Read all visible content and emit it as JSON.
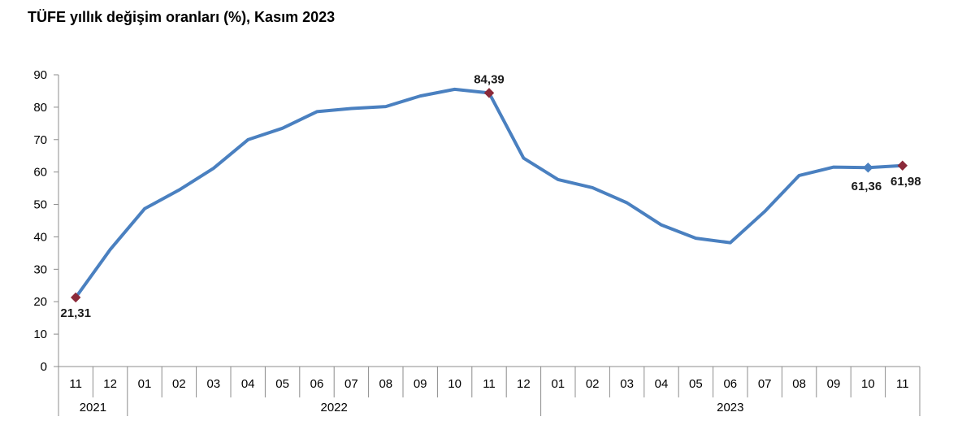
{
  "chart_data": {
    "type": "line",
    "title": "TÜFE yıllık değişim oranları (%), Kasım 2023",
    "xlabel": "",
    "ylabel": "",
    "ylim": [
      0,
      90
    ],
    "yticks": [
      "0",
      "10",
      "20",
      "30",
      "40",
      "50",
      "60",
      "70",
      "80",
      "90"
    ],
    "grid": false,
    "categories": [
      "11",
      "12",
      "01",
      "02",
      "03",
      "04",
      "05",
      "06",
      "07",
      "08",
      "09",
      "10",
      "11",
      "12",
      "01",
      "02",
      "03",
      "04",
      "05",
      "06",
      "07",
      "08",
      "09",
      "10",
      "11"
    ],
    "year_groups": [
      {
        "label": "2021",
        "count": 2
      },
      {
        "label": "2022",
        "count": 12
      },
      {
        "label": "2023",
        "count": 11
      }
    ],
    "series": [
      {
        "values": [
          21.31,
          36.08,
          48.69,
          54.44,
          61.14,
          69.97,
          73.5,
          78.62,
          79.6,
          80.21,
          83.45,
          85.51,
          84.39,
          64.27,
          57.68,
          55.18,
          50.51,
          43.68,
          39.59,
          38.21,
          47.83,
          58.94,
          61.53,
          61.36,
          61.98
        ]
      }
    ],
    "annotations": [
      {
        "index": 0,
        "text": "21,31",
        "position": "below"
      },
      {
        "index": 12,
        "text": "84,39",
        "position": "above"
      },
      {
        "index": 23,
        "text": "61,36",
        "position": "below"
      },
      {
        "index": 24,
        "text": "61,98",
        "position": "below-right"
      }
    ],
    "colors": {
      "line": "#4a80c0",
      "marker": "#8b2a3a",
      "marker_alt": "#4a80c0",
      "axis": "#8c8c8c"
    }
  }
}
